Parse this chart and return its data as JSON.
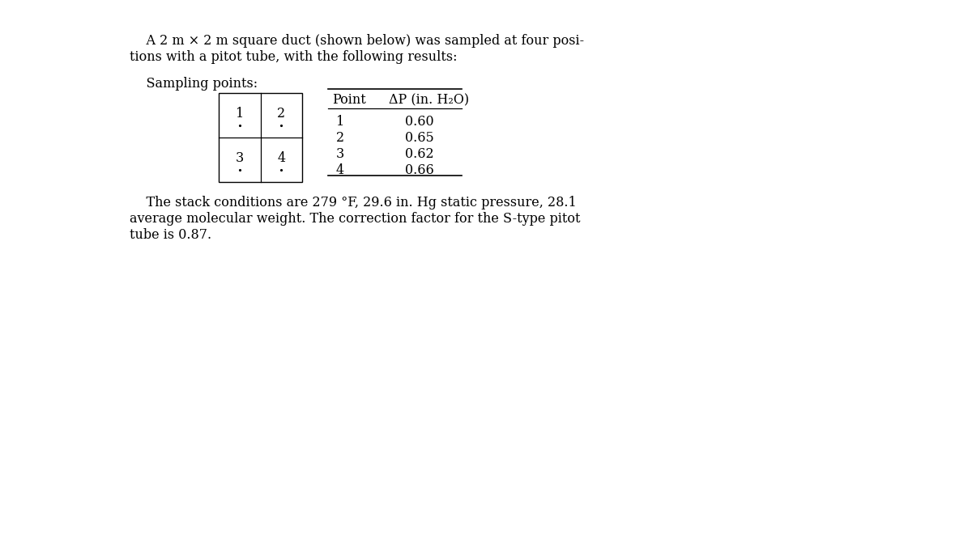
{
  "bg_color": "#ffffff",
  "intro_line1": "    A 2 m × 2 m square duct (shown below) was sampled at four posi-",
  "intro_line2": "tions with a pitot tube, with the following results:",
  "sampling_label": "    Sampling points:",
  "table_header_col1": "Point",
  "table_header_col2": "ΔP (in. H₂O)",
  "table_points": [
    "1",
    "2",
    "3",
    "4"
  ],
  "table_values": [
    "0.60",
    "0.65",
    "0.62",
    "0.66"
  ],
  "footer_line1": "    The stack conditions are 279 °F, 29.6 in. Hg static pressure, 28.1",
  "footer_line2": "average molecular weight. The correction factor for the S-type pitot",
  "footer_line3": "tube is 0.87.",
  "font_size": 11.5,
  "font_family": "serif",
  "text_color": "#000000",
  "grid_nums": [
    "1",
    "2",
    "3",
    "4"
  ],
  "figw": 12.0,
  "figh": 6.75,
  "dpi": 100
}
